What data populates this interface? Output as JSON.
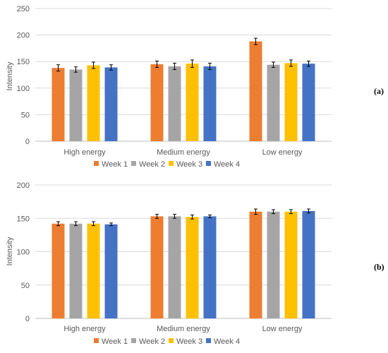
{
  "colors": {
    "week1": "#ED7D31",
    "week2": "#A5A5A5",
    "week3": "#FFC000",
    "week4": "#4472C4",
    "grid": "#D9D9D9",
    "axis_text": "#595959",
    "error_bar": "#000000"
  },
  "chart_data": [
    {
      "type": "bar",
      "panel_label": "(a)",
      "ylabel": "Intensity",
      "ylim": [
        0,
        250
      ],
      "yticks": [
        "0",
        "50",
        "100",
        "150",
        "200",
        "250"
      ],
      "grid": true,
      "legend_position": "bottom",
      "categories": [
        "High energy",
        "Medium energy",
        "Low energy"
      ],
      "series": [
        {
          "name": "Week 1",
          "values": [
            138,
            145,
            188
          ],
          "errors": [
            6,
            6,
            6
          ]
        },
        {
          "name": "Week 2",
          "values": [
            135,
            141,
            144
          ],
          "errors": [
            5,
            6,
            5
          ]
        },
        {
          "name": "Week 3",
          "values": [
            143,
            146,
            147
          ],
          "errors": [
            6,
            7,
            6
          ]
        },
        {
          "name": "Week 4",
          "values": [
            139,
            141,
            146
          ],
          "errors": [
            5,
            6,
            5
          ]
        }
      ]
    },
    {
      "type": "bar",
      "panel_label": "(b)",
      "ylabel": "Intensity",
      "ylim": [
        0,
        200
      ],
      "yticks": [
        "0",
        "50",
        "100",
        "150",
        "200"
      ],
      "grid": true,
      "legend_position": "bottom",
      "categories": [
        "High energy",
        "Medium energy",
        "Low energy"
      ],
      "series": [
        {
          "name": "Week 1",
          "values": [
            142,
            153,
            160
          ],
          "errors": [
            3,
            3,
            4
          ]
        },
        {
          "name": "Week 2",
          "values": [
            142,
            153,
            160
          ],
          "errors": [
            3,
            3,
            3
          ]
        },
        {
          "name": "Week 3",
          "values": [
            142,
            152,
            160
          ],
          "errors": [
            3,
            3,
            3
          ]
        },
        {
          "name": "Week 4",
          "values": [
            141,
            153,
            161
          ],
          "errors": [
            2,
            2,
            3
          ]
        }
      ]
    }
  ]
}
